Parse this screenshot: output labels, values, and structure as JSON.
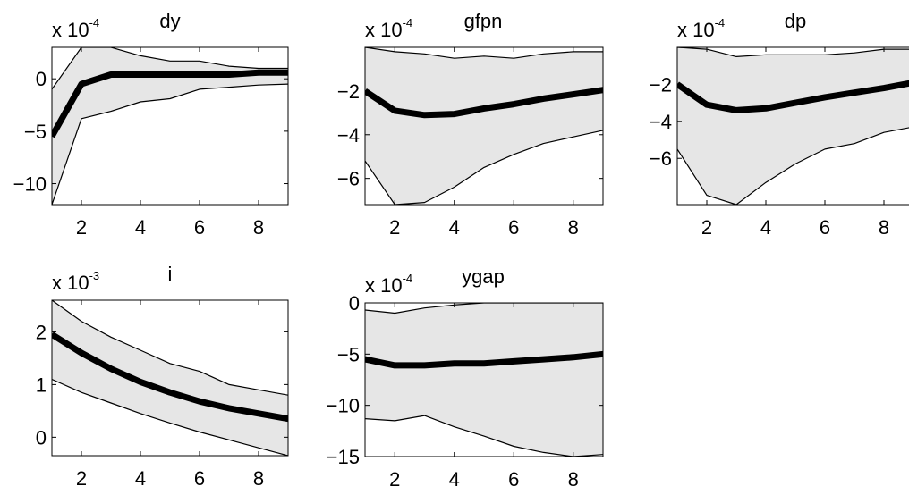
{
  "figure": {
    "background": "#ffffff",
    "band_color": "#e6e6e6",
    "line_color": "#000000"
  },
  "chart_data": [
    {
      "type": "area",
      "title": "dy",
      "multiplier": {
        "base": "x 10",
        "exponent": "-4"
      },
      "xlim": [
        1,
        9
      ],
      "ylim": [
        -12,
        3
      ],
      "x": [
        1,
        2,
        3,
        4,
        5,
        6,
        7,
        8,
        9
      ],
      "x_ticks": [
        2,
        4,
        6,
        8
      ],
      "y_ticks": [
        0,
        -5,
        -10
      ],
      "series": [
        {
          "role": "upper",
          "values": [
            -1,
            3,
            3,
            2.2,
            1.7,
            1.7,
            1.2,
            1.0,
            1.0
          ]
        },
        {
          "role": "median",
          "values": [
            -5.5,
            -0.5,
            0.4,
            0.4,
            0.4,
            0.4,
            0.4,
            0.6,
            0.6
          ]
        },
        {
          "role": "lower",
          "values": [
            -12,
            -3.8,
            -3.1,
            -2.2,
            -1.9,
            -1.0,
            -0.8,
            -0.6,
            -0.5
          ]
        }
      ]
    },
    {
      "type": "area",
      "title": "gfpn",
      "multiplier": {
        "base": "x 10",
        "exponent": "-4"
      },
      "xlim": [
        1,
        9
      ],
      "ylim": [
        -7.2,
        0
      ],
      "x": [
        1,
        2,
        3,
        4,
        5,
        6,
        7,
        8,
        9
      ],
      "x_ticks": [
        2,
        4,
        6,
        8
      ],
      "y_ticks": [
        -2,
        -4,
        -6
      ],
      "series": [
        {
          "role": "upper",
          "values": [
            0,
            -0.2,
            -0.3,
            -0.5,
            -0.4,
            -0.5,
            -0.3,
            -0.2,
            -0.2
          ]
        },
        {
          "role": "median",
          "values": [
            -2.0,
            -2.9,
            -3.1,
            -3.05,
            -2.8,
            -2.6,
            -2.35,
            -2.15,
            -1.95
          ]
        },
        {
          "role": "lower",
          "values": [
            -5.2,
            -7.2,
            -7.1,
            -6.4,
            -5.5,
            -4.9,
            -4.4,
            -4.1,
            -3.8
          ]
        }
      ]
    },
    {
      "type": "area",
      "title": "dp",
      "multiplier": {
        "base": "x 10",
        "exponent": "-4"
      },
      "xlim": [
        1,
        9
      ],
      "ylim": [
        -8.5,
        0
      ],
      "x": [
        1,
        2,
        3,
        4,
        5,
        6,
        7,
        8,
        9
      ],
      "x_ticks": [
        2,
        4,
        6,
        8
      ],
      "y_ticks": [
        -2,
        -4,
        -6
      ],
      "series": [
        {
          "role": "upper",
          "values": [
            0,
            -0.1,
            -0.5,
            -0.4,
            -0.4,
            -0.4,
            -0.3,
            -0.1,
            -0.1
          ]
        },
        {
          "role": "median",
          "values": [
            -2.0,
            -3.1,
            -3.4,
            -3.3,
            -3.0,
            -2.7,
            -2.45,
            -2.2,
            -1.9
          ]
        },
        {
          "role": "lower",
          "values": [
            -5.5,
            -8.0,
            -8.5,
            -7.3,
            -6.3,
            -5.5,
            -5.2,
            -4.6,
            -4.3
          ]
        }
      ]
    },
    {
      "type": "area",
      "title": "i",
      "multiplier": {
        "base": "x 10",
        "exponent": "-3"
      },
      "xlim": [
        1,
        9
      ],
      "ylim": [
        -0.35,
        2.6
      ],
      "x": [
        1,
        2,
        3,
        4,
        5,
        6,
        7,
        8,
        9
      ],
      "x_ticks": [
        2,
        4,
        6,
        8
      ],
      "y_ticks": [
        2,
        1,
        0
      ],
      "series": [
        {
          "role": "upper",
          "values": [
            2.6,
            2.2,
            1.9,
            1.65,
            1.4,
            1.25,
            1.0,
            0.9,
            0.8
          ]
        },
        {
          "role": "median",
          "values": [
            1.95,
            1.6,
            1.3,
            1.05,
            0.85,
            0.68,
            0.55,
            0.45,
            0.35
          ]
        },
        {
          "role": "lower",
          "values": [
            1.1,
            0.85,
            0.65,
            0.45,
            0.27,
            0.1,
            -0.05,
            -0.2,
            -0.35
          ]
        }
      ]
    },
    {
      "type": "area",
      "title": "ygap",
      "multiplier": {
        "base": "x 10",
        "exponent": "-4"
      },
      "xlim": [
        1,
        9
      ],
      "ylim": [
        -15,
        0
      ],
      "x": [
        1,
        2,
        3,
        4,
        5,
        6,
        7,
        8,
        9
      ],
      "x_ticks": [
        2,
        4,
        6,
        8
      ],
      "y_ticks": [
        0,
        -5,
        -10,
        -15
      ],
      "series": [
        {
          "role": "upper",
          "values": [
            -0.7,
            -1.0,
            -0.5,
            -0.2,
            0,
            0,
            0,
            0,
            0
          ]
        },
        {
          "role": "median",
          "values": [
            -5.5,
            -6.1,
            -6.1,
            -5.9,
            -5.9,
            -5.7,
            -5.5,
            -5.3,
            -5.0
          ]
        },
        {
          "role": "lower",
          "values": [
            -11.3,
            -11.5,
            -11,
            -12.1,
            -13,
            -14,
            -14.6,
            -15,
            -14.8
          ]
        }
      ]
    }
  ]
}
